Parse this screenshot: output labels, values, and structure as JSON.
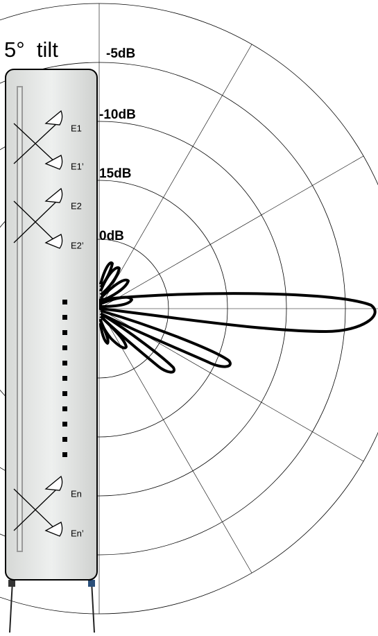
{
  "title": "5°  tilt",
  "ring_labels": [
    "-5dB",
    "-10dB",
    "15dB",
    "0dB"
  ],
  "elements": [
    "E1",
    "E1’",
    "E2",
    "E2’",
    "En",
    "En’"
  ]
}
